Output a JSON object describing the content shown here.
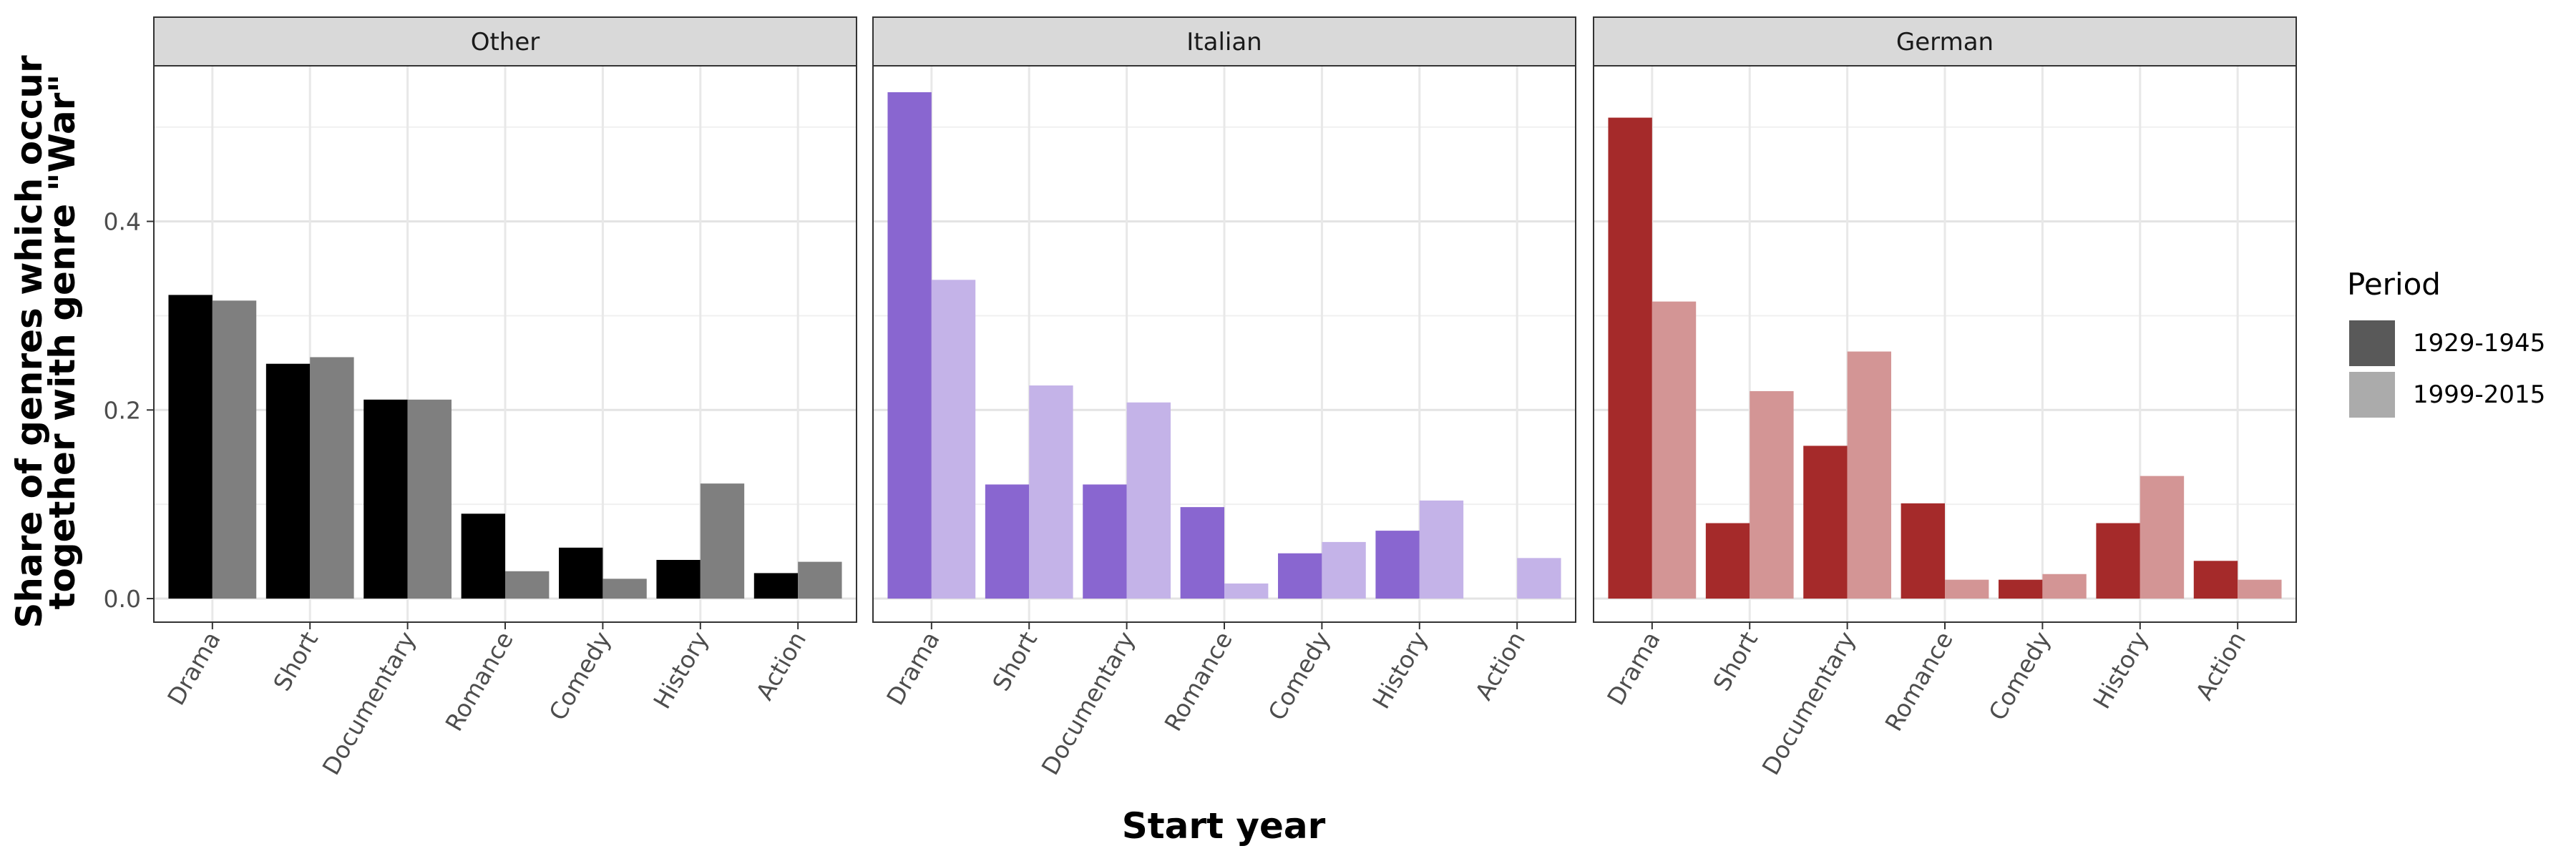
{
  "chart_data": {
    "type": "bar",
    "xlabel": "Start year",
    "ylabel_lines": [
      "Share of genres which occur",
      "together with genre \"War\""
    ],
    "ylim": [
      -0.025,
      0.565
    ],
    "yticks": [
      0.0,
      0.2,
      0.4
    ],
    "ytick_labels": [
      "0.0",
      "0.2",
      "0.4"
    ],
    "grid": true,
    "categories": [
      "Drama",
      "Short",
      "Documentary",
      "Romance",
      "Comedy",
      "History",
      "Action"
    ],
    "legend": {
      "title": "Period",
      "placement": "right",
      "entries": [
        "1929-1945",
        "1999-2015"
      ],
      "swatch_colors": [
        "#595959",
        "#ababab"
      ]
    },
    "panels": [
      {
        "name": "Other",
        "colors": [
          "#000000",
          "#7f7f7f"
        ],
        "series": [
          {
            "name": "1929-1945",
            "values": [
              0.322,
              0.249,
              0.211,
              0.09,
              0.054,
              0.041,
              0.027
            ]
          },
          {
            "name": "1999-2015",
            "values": [
              0.316,
              0.256,
              0.211,
              0.029,
              0.021,
              0.122,
              0.039
            ]
          }
        ]
      },
      {
        "name": "Italian",
        "colors": [
          "#8966d0",
          "#c4b3e8"
        ],
        "series": [
          {
            "name": "1929-1945",
            "values": [
              0.537,
              0.121,
              0.121,
              0.097,
              0.048,
              0.072,
              0.0
            ]
          },
          {
            "name": "1999-2015",
            "values": [
              0.338,
              0.226,
              0.208,
              0.016,
              0.06,
              0.104,
              0.043
            ]
          }
        ]
      },
      {
        "name": "German",
        "colors": [
          "#a52a2a",
          "#d39595"
        ],
        "series": [
          {
            "name": "1929-1945",
            "values": [
              0.51,
              0.08,
              0.162,
              0.101,
              0.02,
              0.08,
              0.04
            ]
          },
          {
            "name": "1999-2015",
            "values": [
              0.315,
              0.22,
              0.262,
              0.02,
              0.026,
              0.13,
              0.02
            ]
          }
        ]
      }
    ]
  }
}
